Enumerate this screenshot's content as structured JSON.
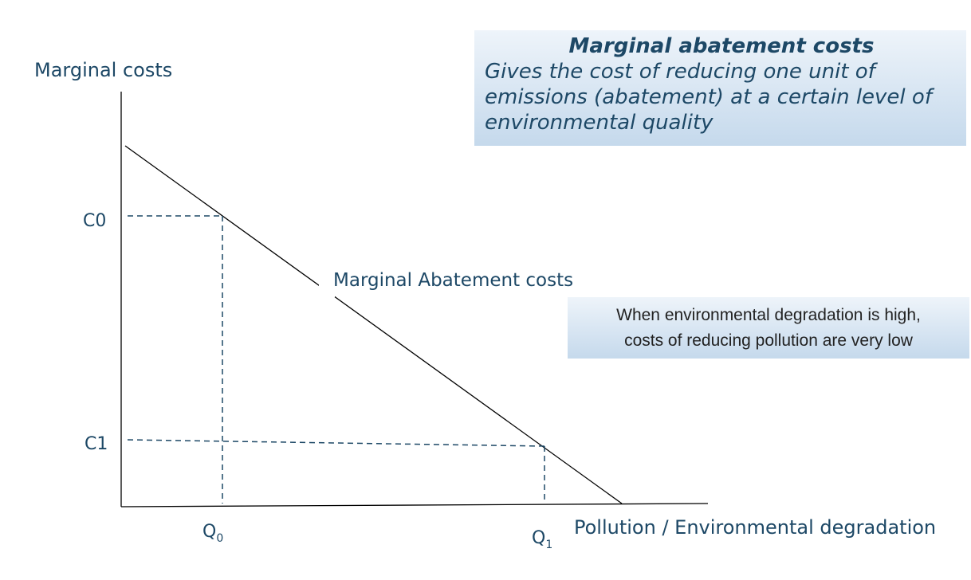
{
  "axes": {
    "y_label": "Marginal costs",
    "x_label": "Pollution / Environmental degradation"
  },
  "levels": {
    "c0": "C0",
    "c1": "C1",
    "q0": {
      "letter": "Q",
      "subscript": "0"
    },
    "q1": {
      "letter": "Q",
      "subscript": "1"
    }
  },
  "curve_label": "Marginal Abatement costs",
  "definition_box": {
    "title": "Marginal abatement costs",
    "body_lines": [
      "Gives the cost of reducing one unit of",
      "emissions (abatement) at a certain level of",
      "environmental quality"
    ]
  },
  "note_box": {
    "lines": [
      "When environmental degradation is high,",
      "costs of reducing pollution are very low"
    ]
  }
}
